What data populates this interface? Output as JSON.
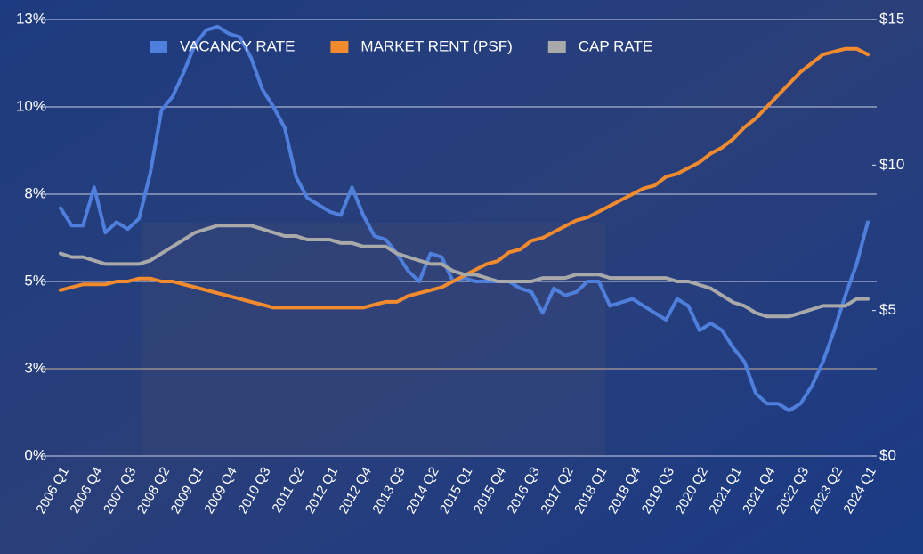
{
  "chart_data": {
    "type": "line",
    "categories": [
      "2006 Q1",
      null,
      null,
      "2006 Q4",
      null,
      null,
      "2007 Q3",
      null,
      null,
      "2008 Q2",
      null,
      null,
      "2009 Q1",
      null,
      null,
      "2009 Q4",
      null,
      null,
      "2010 Q3",
      null,
      null,
      "2011 Q2",
      null,
      null,
      "2012 Q1",
      null,
      null,
      "2012 Q4",
      null,
      null,
      "2013 Q3",
      null,
      null,
      "2014 Q2",
      null,
      null,
      "2015 Q1",
      null,
      null,
      "2015 Q4",
      null,
      null,
      "2016 Q3",
      null,
      null,
      "2017 Q2",
      null,
      null,
      "2018 Q1",
      null,
      null,
      "2018 Q4",
      null,
      null,
      "2019 Q3",
      null,
      null,
      "2020 Q2",
      null,
      null,
      "2021 Q1",
      null,
      null,
      "2021 Q4",
      null,
      null,
      "2022 Q3",
      null,
      null,
      "2023 Q2",
      null,
      null,
      "2024 Q1"
    ],
    "series": [
      {
        "name": "VACANCY RATE",
        "color": "#4f7fdc",
        "values": [
          7.1,
          6.6,
          6.6,
          7.7,
          6.4,
          6.7,
          6.5,
          6.8,
          8.1,
          9.9,
          10.3,
          11.0,
          11.8,
          12.2,
          12.3,
          12.1,
          12.0,
          11.4,
          10.5,
          10.0,
          9.4,
          8.0,
          7.4,
          7.2,
          7.0,
          6.9,
          7.7,
          6.9,
          6.3,
          6.2,
          5.8,
          5.3,
          5.0,
          5.8,
          5.7,
          5.0,
          5.1,
          5.0,
          5.0,
          5.0,
          5.0,
          4.8,
          4.7,
          4.1,
          4.8,
          4.6,
          4.7,
          5.0,
          5.0,
          4.3,
          4.4,
          4.5,
          4.3,
          4.1,
          3.9,
          4.5,
          4.3,
          3.6,
          3.8,
          3.6,
          3.1,
          2.7,
          1.8,
          1.5,
          1.5,
          1.3,
          1.5,
          2.0,
          2.7,
          3.6,
          4.6,
          5.5,
          6.7
        ]
      },
      {
        "name": "MARKET RENT (PSF)",
        "color": "#f28a2e",
        "axis": "y2",
        "values": [
          5.7,
          5.8,
          5.9,
          5.9,
          5.9,
          6.0,
          6.0,
          6.1,
          6.1,
          6.0,
          6.0,
          5.9,
          5.8,
          5.7,
          5.6,
          5.5,
          5.4,
          5.3,
          5.2,
          5.1,
          5.1,
          5.1,
          5.1,
          5.1,
          5.1,
          5.1,
          5.1,
          5.1,
          5.2,
          5.3,
          5.3,
          5.5,
          5.6,
          5.7,
          5.8,
          6.0,
          6.2,
          6.4,
          6.6,
          6.7,
          7.0,
          7.1,
          7.4,
          7.5,
          7.7,
          7.9,
          8.1,
          8.2,
          8.4,
          8.6,
          8.8,
          9.0,
          9.2,
          9.3,
          9.6,
          9.7,
          9.9,
          10.1,
          10.4,
          10.6,
          10.9,
          11.3,
          11.6,
          12.0,
          12.4,
          12.8,
          13.2,
          13.5,
          13.8,
          13.9,
          14.0,
          14.0,
          13.8
        ]
      },
      {
        "name": "CAP RATE",
        "color": "#a9a9a9",
        "values": [
          5.8,
          5.7,
          5.7,
          5.6,
          5.5,
          5.5,
          5.5,
          5.5,
          5.6,
          5.8,
          6.0,
          6.2,
          6.4,
          6.5,
          6.6,
          6.6,
          6.6,
          6.6,
          6.5,
          6.4,
          6.3,
          6.3,
          6.2,
          6.2,
          6.2,
          6.1,
          6.1,
          6.0,
          6.0,
          6.0,
          5.8,
          5.7,
          5.6,
          5.5,
          5.5,
          5.3,
          5.2,
          5.2,
          5.1,
          5.0,
          5.0,
          5.0,
          5.0,
          5.1,
          5.1,
          5.1,
          5.2,
          5.2,
          5.2,
          5.1,
          5.1,
          5.1,
          5.1,
          5.1,
          5.1,
          5.0,
          5.0,
          4.9,
          4.8,
          4.6,
          4.4,
          4.3,
          4.1,
          4.0,
          4.0,
          4.0,
          4.1,
          4.2,
          4.3,
          4.3,
          4.3,
          4.5,
          4.5
        ]
      }
    ],
    "ylim": [
      0,
      12.5
    ],
    "yticks": [
      {
        "value": 0,
        "label": "0%"
      },
      {
        "value": 2.5,
        "label": "3%"
      },
      {
        "value": 5,
        "label": "5%"
      },
      {
        "value": 7.5,
        "label": "8%"
      },
      {
        "value": 10,
        "label": "10%"
      },
      {
        "value": 12.5,
        "label": "13%"
      }
    ],
    "y2lim": [
      0,
      15
    ],
    "y2ticks": [
      {
        "value": 0,
        "label": "$0"
      },
      {
        "value": 5,
        "label": "$5"
      },
      {
        "value": 10,
        "label": "$10"
      },
      {
        "value": 15,
        "label": "$15"
      }
    ],
    "grid": true,
    "legend": "top"
  }
}
